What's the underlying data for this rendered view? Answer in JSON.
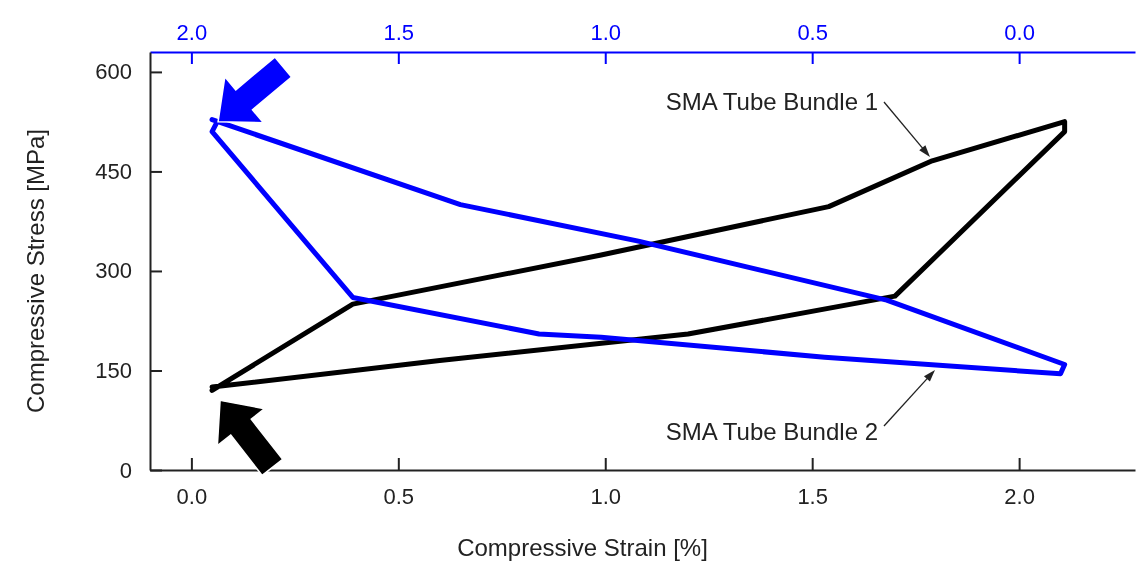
{
  "chart_data": {
    "type": "line",
    "xlabel": "Compressive Strain [%]",
    "ylabel": "Compressive Stress [MPa]",
    "xlim": [
      -0.1,
      2.28
    ],
    "xticks": [
      {
        "value": 0,
        "label": "0.0"
      },
      0.5,
      {
        "value": 1,
        "label": "1.0"
      },
      1.5,
      {
        "value": 2,
        "label": "2.0"
      }
    ],
    "x2lim": [
      2.1,
      -0.28
    ],
    "x2ticks": [
      {
        "value": 2,
        "label": "2.0"
      },
      1.5,
      {
        "value": 1,
        "label": "1.0"
      },
      0.5,
      {
        "value": 0,
        "label": "0.0"
      }
    ],
    "ylim": [
      0,
      630
    ],
    "yticks": [
      0,
      150,
      300,
      450,
      600
    ],
    "grid": false,
    "marker": "none",
    "line_style": "solid",
    "series": [
      {
        "color": "#000000",
        "x": [
          0.05,
          0.39,
          0.99,
          1.54,
          1.79,
          2.11,
          2.11,
          1.7,
          1.2,
          0.6,
          0.05
        ],
        "values": [
          120,
          250,
          324,
          397,
          466,
          525,
          510,
          262,
          205,
          165,
          125
        ]
      },
      {
        "color": "#0000ff",
        "axis": "x2",
        "x": [
          1.95,
          1.35,
          0.92,
          0.32,
          -0.11,
          -0.1,
          0.47,
          1.01,
          1.16,
          1.61,
          1.95,
          1.94
        ],
        "values": [
          528,
          400,
          345,
          256,
          159,
          145,
          170,
          200,
          205,
          260,
          510,
          522
        ]
      }
    ],
    "annotations": [
      "SMA Tube Bundle 1",
      "SMA Tube Bundle 2"
    ]
  }
}
